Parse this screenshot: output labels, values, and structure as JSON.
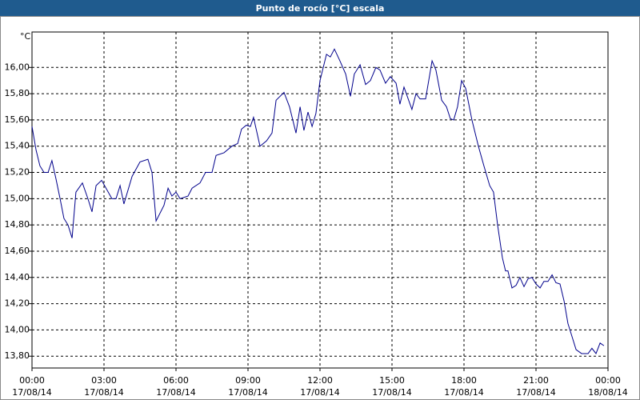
{
  "chart_data": {
    "type": "line",
    "title": "Punto de rocío [°C] escala",
    "y_label": "°C",
    "x": [
      0,
      0.17,
      0.33,
      0.5,
      0.67,
      0.83,
      1,
      1.17,
      1.33,
      1.5,
      1.67,
      1.83,
      2.1,
      2.33,
      2.5,
      2.67,
      2.9,
      3.33,
      3.5,
      3.67,
      3.83,
      4.17,
      4.5,
      4.83,
      5,
      5.17,
      5.5,
      5.67,
      5.83,
      6,
      6.17,
      6.5,
      6.67,
      7,
      7.23,
      7.5,
      7.67,
      8,
      8.33,
      8.57,
      8.73,
      8.93,
      9.1,
      9.23,
      9.5,
      9.77,
      10,
      10.17,
      10.5,
      10.73,
      11,
      11.17,
      11.33,
      11.5,
      11.67,
      11.83,
      12,
      12.27,
      12.43,
      12.6,
      12.83,
      13.07,
      13.27,
      13.43,
      13.67,
      13.9,
      14.1,
      14.33,
      14.5,
      14.73,
      14.93,
      15.17,
      15.33,
      15.5,
      15.83,
      16,
      16.17,
      16.4,
      16.67,
      16.83,
      17.07,
      17.27,
      17.43,
      17.57,
      17.73,
      17.9,
      18.07,
      18.33,
      18.6,
      18.83,
      19.07,
      19.23,
      19.4,
      19.6,
      19.73,
      19.83,
      20,
      20.17,
      20.33,
      20.5,
      20.67,
      20.83,
      21,
      21.17,
      21.33,
      21.5,
      21.67,
      21.83,
      22,
      22.17,
      22.33,
      22.5,
      22.67,
      22.9,
      23.17,
      23.33,
      23.5,
      23.67,
      23.83
    ],
    "series": [
      {
        "name": "Punto de rocío",
        "color": "#00008b",
        "values": [
          15.55,
          15.37,
          15.25,
          15.2,
          15.2,
          15.29,
          15.15,
          15.0,
          14.85,
          14.8,
          14.7,
          15.05,
          15.12,
          15.0,
          14.9,
          15.1,
          15.14,
          15.0,
          15.0,
          15.1,
          14.96,
          15.17,
          15.28,
          15.3,
          15.2,
          14.83,
          14.95,
          15.08,
          15.02,
          15.05,
          15.0,
          15.02,
          15.08,
          15.12,
          15.2,
          15.2,
          15.33,
          15.35,
          15.4,
          15.42,
          15.53,
          15.56,
          15.55,
          15.62,
          15.4,
          15.44,
          15.5,
          15.75,
          15.81,
          15.7,
          15.5,
          15.7,
          15.52,
          15.66,
          15.55,
          15.65,
          15.9,
          16.1,
          16.08,
          16.14,
          16.05,
          15.95,
          15.78,
          15.95,
          16.02,
          15.87,
          15.9,
          16.0,
          15.98,
          15.88,
          15.93,
          15.88,
          15.72,
          15.85,
          15.68,
          15.8,
          15.76,
          15.76,
          16.05,
          15.98,
          15.75,
          15.7,
          15.61,
          15.6,
          15.7,
          15.9,
          15.84,
          15.6,
          15.4,
          15.25,
          15.1,
          15.05,
          14.8,
          14.55,
          14.45,
          14.45,
          14.32,
          14.34,
          14.4,
          14.33,
          14.39,
          14.4,
          14.35,
          14.32,
          14.37,
          14.37,
          14.42,
          14.36,
          14.35,
          14.22,
          14.05,
          13.95,
          13.85,
          13.82,
          13.82,
          13.86,
          13.82,
          13.9,
          13.88
        ]
      }
    ],
    "xlim": [
      0,
      24
    ],
    "xticks": [
      {
        "value": 0,
        "label": "00:00"
      },
      {
        "value": 3,
        "label": "03:00"
      },
      {
        "value": 6,
        "label": "06:00"
      },
      {
        "value": 9,
        "label": "09:00"
      },
      {
        "value": 12,
        "label": "12:00"
      },
      {
        "value": 15,
        "label": "15:00"
      },
      {
        "value": 18,
        "label": "18:00"
      },
      {
        "value": 21,
        "label": "21:00"
      },
      {
        "value": 24,
        "label": "00:00"
      }
    ],
    "xtick_dates": [
      "17/08/14",
      "17/08/14",
      "17/08/14",
      "17/08/14",
      "17/08/14",
      "17/08/14",
      "17/08/14",
      "17/08/14",
      "18/08/14"
    ],
    "ylim": [
      13.71,
      16.27
    ],
    "yticks": [
      {
        "value": 13.8,
        "label": "13,80"
      },
      {
        "value": 14,
        "label": "14,00"
      },
      {
        "value": 14.2,
        "label": "14,20"
      },
      {
        "value": 14.4,
        "label": "14,40"
      },
      {
        "value": 14.6,
        "label": "14,60"
      },
      {
        "value": 14.8,
        "label": "14,80"
      },
      {
        "value": 15,
        "label": "15,00"
      },
      {
        "value": 15.2,
        "label": "15,20"
      },
      {
        "value": 15.4,
        "label": "15,40"
      },
      {
        "value": 15.6,
        "label": "15,60"
      },
      {
        "value": 15.8,
        "label": "15,80"
      },
      {
        "value": 16,
        "label": "16,00"
      }
    ],
    "grid": true
  }
}
